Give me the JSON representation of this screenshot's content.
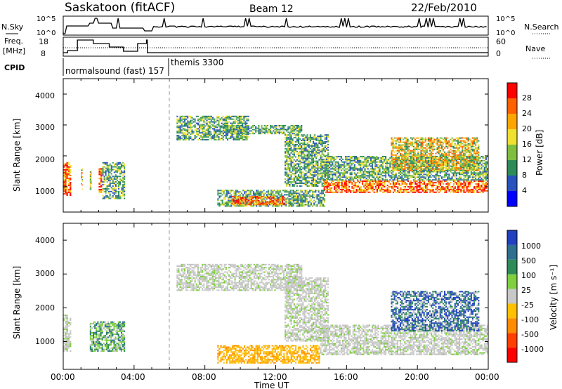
{
  "header": {
    "station": "Saskatoon (fitACF)",
    "beam": "Beam 12",
    "date": "22/Feb/2010"
  },
  "sky_panel": {
    "label": "N.Sky",
    "right_label": "N.Search",
    "yticks_left": [
      "10^5",
      "10^0"
    ],
    "yticks_right": [
      "10^5",
      "10^0"
    ]
  },
  "freq_panel": {
    "label_line1": "Freq.",
    "label_line2": "[MHz]",
    "right_label": "Nave",
    "yticks_left": [
      "18",
      "8"
    ],
    "yticks_right": [
      "60",
      "0"
    ]
  },
  "cpid": {
    "label": "CPID",
    "segments": [
      {
        "text": "normalsound (fast) 157",
        "start_hour": 0.0
      },
      {
        "text": "themis 3300",
        "start_hour": 6.0
      }
    ]
  },
  "chart_data": [
    {
      "type": "heatmap",
      "panel": "power",
      "xlabel": "",
      "ylabel": "Slant Range [km]",
      "x_range_hours": [
        0,
        24
      ],
      "ylim": [
        180,
        4500
      ],
      "yticks": [
        "1000",
        "2000",
        "3000",
        "4000"
      ],
      "colorbar": {
        "label": "Power [dB]",
        "ticks": [
          "4",
          "8",
          "12",
          "16",
          "20",
          "24",
          "28"
        ],
        "colors": [
          "#0000ff",
          "#2a52be",
          "#2e8b57",
          "#7fbf3f",
          "#f0e030",
          "#ffa500",
          "#ff6000",
          "#ff0000"
        ]
      },
      "regions": [
        {
          "t0": 0.0,
          "t1": 0.45,
          "r0": 700,
          "r1": 1800,
          "level": "high"
        },
        {
          "t0": 1.0,
          "t1": 1.1,
          "r0": 900,
          "r1": 1600,
          "level": "mid"
        },
        {
          "t0": 1.5,
          "t1": 1.6,
          "r0": 900,
          "r1": 1500,
          "level": "mid"
        },
        {
          "t0": 2.0,
          "t1": 2.2,
          "r0": 800,
          "r1": 1600,
          "level": "high"
        },
        {
          "t0": 2.2,
          "t1": 3.5,
          "r0": 600,
          "r1": 1800,
          "level": "low"
        },
        {
          "t0": 6.4,
          "t1": 10.5,
          "r0": 2500,
          "r1": 3300,
          "level": "low"
        },
        {
          "t0": 9.0,
          "t1": 13.5,
          "r0": 2700,
          "r1": 3000,
          "level": "low"
        },
        {
          "t0": 8.7,
          "t1": 14.8,
          "r0": 350,
          "r1": 900,
          "level": "low"
        },
        {
          "t0": 9.5,
          "t1": 12.5,
          "r0": 400,
          "r1": 700,
          "level": "high"
        },
        {
          "t0": 12.5,
          "t1": 15.0,
          "r0": 1000,
          "r1": 2700,
          "level": "low"
        },
        {
          "t0": 14.7,
          "t1": 24.0,
          "r0": 800,
          "r1": 1200,
          "level": "high"
        },
        {
          "t0": 14.5,
          "t1": 24.0,
          "r0": 1200,
          "r1": 2000,
          "level": "low"
        },
        {
          "t0": 18.5,
          "t1": 23.5,
          "r0": 1500,
          "r1": 2600,
          "level": "mid"
        }
      ]
    },
    {
      "type": "heatmap",
      "panel": "velocity",
      "xlabel": "Time UT",
      "ylabel": "Slant Range [km]",
      "x_range_hours": [
        0,
        24
      ],
      "ylim": [
        180,
        4500
      ],
      "yticks": [
        "1000",
        "2000",
        "3000",
        "4000"
      ],
      "xticks": [
        "00:00",
        "04:00",
        "08:00",
        "12:00",
        "16:00",
        "20:00",
        "00:00"
      ],
      "colorbar": {
        "label": "Velocity [m s⁻¹]",
        "ticks": [
          "1000",
          "500",
          "100",
          "25",
          "-25",
          "-100",
          "-500",
          "-1000"
        ],
        "colors": [
          "#2040c0",
          "#2e6e8e",
          "#2e8b57",
          "#7fcf3f",
          "#c8c8c8",
          "#ffc000",
          "#ff8c00",
          "#ff4000",
          "#ff0000"
        ]
      },
      "regions": [
        {
          "t0": 0.0,
          "t1": 0.45,
          "r0": 700,
          "r1": 1800,
          "level": "ground"
        },
        {
          "t0": 1.5,
          "t1": 3.5,
          "r0": 700,
          "r1": 1600,
          "level": "green"
        },
        {
          "t0": 6.4,
          "t1": 13.5,
          "r0": 2500,
          "r1": 3300,
          "level": "ground"
        },
        {
          "t0": 8.7,
          "t1": 14.5,
          "r0": 350,
          "r1": 900,
          "level": "orange"
        },
        {
          "t0": 12.5,
          "t1": 15.0,
          "r0": 1000,
          "r1": 2900,
          "level": "ground"
        },
        {
          "t0": 14.5,
          "t1": 24.0,
          "r0": 600,
          "r1": 1500,
          "level": "ground"
        },
        {
          "t0": 18.5,
          "t1": 23.5,
          "r0": 1300,
          "r1": 2500,
          "level": "blue"
        }
      ]
    }
  ],
  "colors": {
    "frame": "#000000",
    "dashed_line": "#999999"
  }
}
